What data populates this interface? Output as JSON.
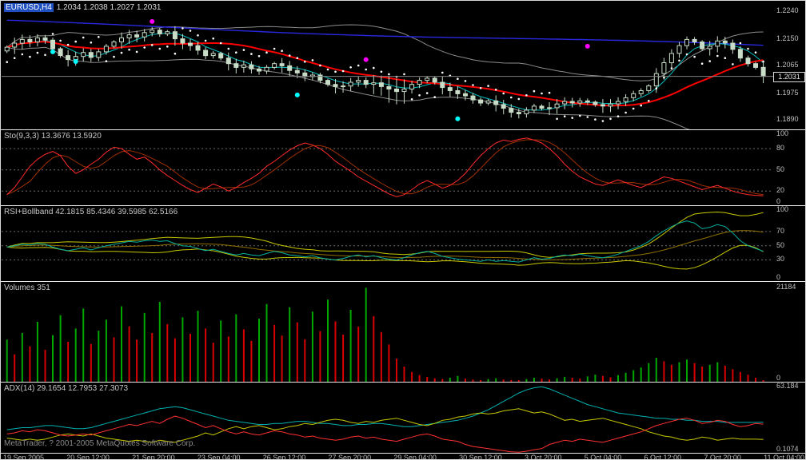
{
  "header": {
    "symbol_period": "EURUSD,H4",
    "ohlc": "1.2034 1.2038 1.2027 1.2031"
  },
  "footer": {
    "copyright": "MetaTrader, ? 2001-2005 MetaQuotes Software Corp."
  },
  "time_axis": [
    "19 Sep 2005",
    "20 Sep 12:00",
    "21 Sep 20:00",
    "23 Sep 04:00",
    "26 Sep 12:00",
    "27 Sep 20:00",
    "29 Sep 04:00",
    "30 Sep 12:00",
    "3 Oct 20:00",
    "5 Oct 04:00",
    "6 Oct 12:00",
    "7 Oct 20:00",
    "11 Oct 04:00"
  ],
  "colors": {
    "background": "#000000",
    "foreground": "#c0c0c0",
    "grid": "#6e6e6e",
    "separator": "#e8e8e8",
    "bar": "#c8dcc8",
    "ma_red": "#ff0000",
    "ma_blue": "#2828e0",
    "ma_cyan": "#00c0c0",
    "envelope": "#8c8c8c",
    "sar": "#ffffff",
    "price_line": "#808080",
    "symbol_highlight": "#2050c0",
    "stoch_main": "#ff2a2a",
    "stoch_signal": "#a03000",
    "rsi": "#00b0a0",
    "rsi_band": "#c8c800",
    "rsi_mid": "#907000",
    "vol_up": "#00a800",
    "vol_down": "#d80000",
    "adx_main": "#00b0b0",
    "adx_plus_di": "#c8c800",
    "adx_minus_di": "#ff3030"
  },
  "chart_data": [
    {
      "type": "candlestick",
      "name": "price-chart",
      "symbol": "EURUSD",
      "period": "H4",
      "ohlc_current": {
        "open": 1.2034,
        "high": 1.2038,
        "low": 1.2027,
        "close": 1.2031
      },
      "current_price": 1.2031,
      "current_price_label": "1.2031",
      "ylim": [
        1.186,
        1.2272
      ],
      "scale_labels": [
        "1.2240",
        "1.2150",
        "1.2065",
        "1.1975",
        "1.1890"
      ],
      "overlays": [
        "red-ma",
        "blue-slow-ma",
        "cyan-fast-ma",
        "gray-envelope",
        "white-sar-dots"
      ],
      "closes": [
        1.2125,
        1.2138,
        1.215,
        1.2142,
        1.2155,
        1.2148,
        1.212,
        1.2098,
        1.2085,
        1.2095,
        1.2108,
        1.2092,
        1.211,
        1.2128,
        1.2142,
        1.2155,
        1.2165,
        1.2158,
        1.2172,
        1.218,
        1.2168,
        1.2175,
        1.2152,
        1.2138,
        1.213,
        1.2115,
        1.2098,
        1.2105,
        1.209,
        1.2072,
        1.206,
        1.2068,
        1.2055,
        1.2048,
        1.206,
        1.2072,
        1.2065,
        1.205,
        1.2042,
        1.203,
        1.2035,
        1.2018,
        1.2005,
        1.1998,
        1.2,
        1.2012,
        1.2018,
        1.2005,
        1.201,
        1.1998,
        1.199,
        1.1982,
        1.199,
        1.2005,
        1.2018,
        1.2025,
        1.2012,
        1.1995,
        1.1985,
        1.1975,
        1.1968,
        1.1955,
        1.1945,
        1.1952,
        1.194,
        1.1928,
        1.1915,
        1.191,
        1.1922,
        1.1935,
        1.1928,
        1.193,
        1.1942,
        1.195,
        1.1945,
        1.1952,
        1.1948,
        1.194,
        1.1935,
        1.1942,
        1.195,
        1.1962,
        1.1975,
        1.1985,
        1.2,
        1.204,
        1.2075,
        1.2105,
        1.213,
        1.215,
        1.2142,
        1.212,
        1.2128,
        1.2145,
        1.2138,
        1.2118,
        1.209,
        1.2072,
        1.206,
        1.2031
      ],
      "special_dots": [
        {
          "bar": 19,
          "price": 1.2208,
          "color": "#ff00ff"
        },
        {
          "bar": 47,
          "price": 1.2085,
          "color": "#ff00ff"
        },
        {
          "bar": 76,
          "price": 1.2128,
          "color": "#ff00ff"
        },
        {
          "bar": 6,
          "price": 1.211,
          "color": "#00ffff"
        },
        {
          "bar": 9,
          "price": 1.2079,
          "color": "#00ffff"
        },
        {
          "bar": 38,
          "price": 1.1971,
          "color": "#00ffff"
        },
        {
          "bar": 59,
          "price": 1.1894,
          "color": "#00ffff"
        }
      ]
    },
    {
      "type": "line",
      "name": "stochastic",
      "label": "Sto(9,3,3) 13.3676 13.5920",
      "current_values": [
        13.3676,
        13.592
      ],
      "ylim": [
        0,
        106
      ],
      "levels": [
        80,
        50,
        20
      ],
      "scale_labels": [
        "100",
        "80",
        "50",
        "20",
        "0"
      ],
      "values": [
        15,
        25,
        40,
        55,
        65,
        72,
        76,
        70,
        55,
        45,
        50,
        58,
        65,
        75,
        82,
        80,
        72,
        65,
        68,
        60,
        50,
        42,
        35,
        28,
        22,
        18,
        24,
        30,
        26,
        20,
        25,
        32,
        38,
        45,
        55,
        62,
        70,
        78,
        84,
        88,
        85,
        80,
        72,
        62,
        55,
        48,
        40,
        34,
        28,
        22,
        16,
        12,
        15,
        22,
        30,
        35,
        30,
        24,
        28,
        35,
        45,
        58,
        70,
        80,
        88,
        92,
        90,
        93,
        95,
        92,
        88,
        80,
        70,
        58,
        48,
        40,
        35,
        30,
        28,
        32,
        36,
        32,
        28,
        25,
        30,
        35,
        40,
        38,
        34,
        30,
        26,
        22,
        25,
        28,
        24,
        20,
        17,
        15,
        14,
        13.4
      ]
    },
    {
      "type": "line",
      "name": "rsi-bollband",
      "label": "RSI+Bollband 42.1815 85.4346 39.5985 62.5166",
      "current_values": [
        42.1815,
        85.4346,
        39.5985,
        62.5166
      ],
      "ylim": [
        0,
        106
      ],
      "levels": [
        70,
        50,
        30
      ],
      "scale_labels": [
        "100",
        "70",
        "50",
        "30",
        "0"
      ],
      "rsi": [
        48,
        50,
        52,
        51,
        53,
        52,
        48,
        45,
        43,
        45,
        47,
        44,
        47,
        50,
        52,
        54,
        56,
        55,
        57,
        58,
        56,
        57,
        53,
        50,
        49,
        46,
        43,
        45,
        42,
        39,
        37,
        39,
        37,
        36,
        39,
        42,
        40,
        37,
        36,
        34,
        36,
        33,
        31,
        30,
        32,
        35,
        37,
        34,
        36,
        33,
        31,
        30,
        33,
        37,
        40,
        42,
        39,
        35,
        33,
        31,
        30,
        29,
        28,
        30,
        28,
        29,
        28,
        27,
        30,
        33,
        31,
        32,
        35,
        37,
        36,
        38,
        36,
        34,
        33,
        35,
        38,
        42,
        46,
        50,
        56,
        64,
        71,
        77,
        82,
        85,
        82,
        74,
        76,
        80,
        77,
        68,
        57,
        50,
        46,
        42.2
      ]
    },
    {
      "type": "bar",
      "name": "volumes",
      "label": "Volumes 351",
      "current_value": 351,
      "ylim": [
        0,
        22500
      ],
      "scale_labels": [
        "21184",
        "0"
      ],
      "values": [
        9500,
        6200,
        11000,
        8000,
        13500,
        7200,
        10500,
        15000,
        9000,
        12000,
        16500,
        8500,
        11500,
        14000,
        10000,
        17000,
        12500,
        9500,
        15500,
        11000,
        18000,
        13000,
        9800,
        14500,
        10800,
        16000,
        12000,
        8800,
        13800,
        10200,
        15200,
        11800,
        9200,
        14200,
        17500,
        12800,
        10400,
        16800,
        13400,
        9600,
        15800,
        11400,
        18500,
        13600,
        10600,
        16200,
        12400,
        21184,
        14800,
        11200,
        8400,
        5200,
        3400,
        2200,
        1500,
        1100,
        800,
        600,
        900,
        1300,
        700,
        500,
        400,
        600,
        800,
        500,
        400,
        350,
        600,
        900,
        700,
        500,
        800,
        1100,
        900,
        700,
        1200,
        1600,
        1300,
        1000,
        1500,
        2000,
        2600,
        3200,
        4200,
        5400,
        4600,
        3800,
        4400,
        5000,
        4200,
        3400,
        3800,
        4400,
        3600,
        2800,
        2200,
        1600,
        900,
        351
      ]
    },
    {
      "type": "line",
      "name": "adx",
      "label": "ADX(14) 29.1654 12.7953 27.3073",
      "current_values": [
        29.1654,
        12.7953,
        27.3073
      ],
      "ylim": [
        0,
        67
      ],
      "scale_labels": [
        "63.184",
        "0.1074"
      ],
      "series": [
        {
          "name": "ADX",
          "color": "#00b0b0",
          "values": [
            22,
            23,
            24,
            24,
            25,
            26,
            26,
            25,
            24,
            23,
            23,
            24,
            26,
            28,
            30,
            32,
            34,
            36,
            38,
            40,
            42,
            43,
            44,
            43,
            41,
            39,
            37,
            35,
            33,
            31,
            30,
            29,
            28,
            27,
            27,
            28,
            28,
            29,
            30,
            30,
            29,
            28,
            28,
            27,
            26,
            26,
            27,
            27,
            28,
            28,
            27,
            26,
            25,
            25,
            26,
            27,
            28,
            29,
            30,
            31,
            33,
            35,
            38,
            41,
            45,
            49,
            53,
            57,
            60,
            62,
            63,
            61,
            58,
            55,
            52,
            49,
            46,
            44,
            42,
            40,
            38,
            37,
            36,
            35,
            34,
            33,
            33,
            32,
            32,
            31,
            31,
            30,
            30,
            30,
            29,
            29,
            29,
            29,
            29,
            29.2
          ]
        },
        {
          "name": "+DI",
          "color": "#c8c800",
          "values": [
            14,
            13,
            12,
            13,
            12,
            13,
            15,
            17,
            18,
            17,
            16,
            18,
            16,
            14,
            13,
            12,
            11,
            12,
            11,
            10,
            12,
            11,
            10,
            12,
            14,
            16,
            19,
            17,
            20,
            23,
            25,
            23,
            25,
            26,
            24,
            22,
            23,
            25,
            26,
            28,
            27,
            29,
            31,
            32,
            31,
            29,
            28,
            30,
            29,
            31,
            32,
            33,
            31,
            29,
            27,
            26,
            28,
            31,
            32,
            34,
            35,
            37,
            38,
            37,
            38,
            40,
            41,
            42,
            40,
            38,
            39,
            37,
            34,
            31,
            32,
            30,
            31,
            32,
            33,
            31,
            29,
            27,
            25,
            23,
            20,
            18,
            16,
            15,
            13,
            12,
            13,
            15,
            14,
            12,
            13,
            14,
            13,
            13,
            13,
            12.8
          ]
        },
        {
          "name": "-DI",
          "color": "#ff3030",
          "values": [
            18,
            19,
            21,
            20,
            22,
            21,
            19,
            17,
            16,
            17,
            18,
            17,
            19,
            21,
            23,
            25,
            27,
            26,
            28,
            30,
            28,
            32,
            35,
            33,
            30,
            27,
            24,
            26,
            23,
            20,
            18,
            20,
            18,
            17,
            19,
            21,
            20,
            18,
            17,
            15,
            16,
            14,
            13,
            12,
            13,
            15,
            16,
            14,
            15,
            13,
            12,
            11,
            13,
            15,
            17,
            18,
            16,
            13,
            12,
            11,
            8,
            6,
            5,
            4,
            3,
            2,
            1,
            0.5,
            1.5,
            3,
            4,
            8,
            10,
            12,
            11,
            13,
            12,
            11,
            10,
            12,
            14,
            16,
            18,
            20,
            23,
            26,
            28,
            30,
            32,
            33,
            31,
            28,
            29,
            31,
            30,
            27,
            25,
            26,
            28,
            27.3
          ]
        }
      ]
    }
  ]
}
